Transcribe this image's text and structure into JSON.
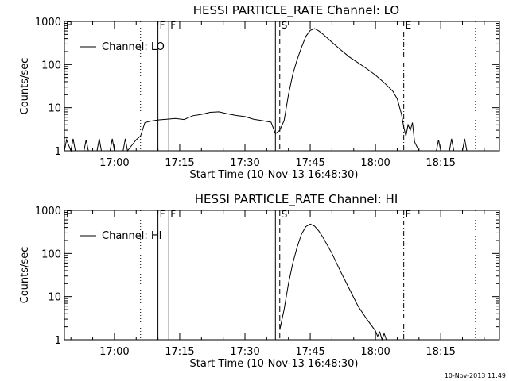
{
  "footer": {
    "timestamp": "10-Nov-2013 11:49"
  },
  "chart_data": [
    {
      "type": "line",
      "title": "HESSI PARTICLE_RATE Channel: LO",
      "xlabel": "Start Time (10-Nov-13 16:48:30)",
      "ylabel": "Counts/sec",
      "y_scale": "log",
      "ylim": [
        1,
        1000
      ],
      "xlim": [
        "16:48:30",
        "18:28:30"
      ],
      "x_ticks": [
        "17:00",
        "17:15",
        "17:30",
        "17:45",
        "18:00",
        "18:15"
      ],
      "y_ticks": [
        "1",
        "10",
        "100",
        "1000"
      ],
      "legend": {
        "placement": "top-left",
        "entries": [
          "Channel: LO"
        ]
      },
      "markers": [
        {
          "label": "F",
          "time": "17:10.0",
          "style": "solid"
        },
        {
          "label": "F",
          "time": "17:12.5",
          "style": "solid"
        },
        {
          "label": "S",
          "time": "17:38.0",
          "style": "dashed"
        },
        {
          "label": "E",
          "time": "18:06.5",
          "style": "dash-dot"
        }
      ],
      "guide_lines": [
        {
          "time": "17:06.0",
          "style": "dotted"
        },
        {
          "time": "17:37.0",
          "style": "solid"
        },
        {
          "time": "18:23.0",
          "style": "dotted"
        }
      ],
      "series": [
        {
          "name": "Channel: LO",
          "x": [
            "16:48:30",
            "16:49:00",
            "16:50:00",
            "16:50:30",
            "16:51:00",
            "16:53:00",
            "16:53:30",
            "16:54:00",
            "16:56:00",
            "16:56:30",
            "16:57:00",
            "16:59:00",
            "16:59:30",
            "17:00:00",
            "17:02:00",
            "17:02:30",
            "17:03:00",
            "17:05:00",
            "17:06:00",
            "17:07:00",
            "17:08:00",
            "17:10:00",
            "17:12:00",
            "17:14:00",
            "17:16:00",
            "17:18:00",
            "17:20:00",
            "17:22:00",
            "17:24:00",
            "17:26:00",
            "17:28:00",
            "17:30:00",
            "17:32:00",
            "17:34:00",
            "17:36:00",
            "17:37:00",
            "17:38:00",
            "17:39:00",
            "17:40:00",
            "17:41:00",
            "17:42:00",
            "17:43:00",
            "17:44:00",
            "17:45:00",
            "17:46:00",
            "17:47:00",
            "17:48:00",
            "17:50:00",
            "17:52:00",
            "17:54:00",
            "17:56:00",
            "17:58:00",
            "18:00:00",
            "18:02:00",
            "18:04:00",
            "18:05:00",
            "18:06:00",
            "18:06:30",
            "18:07:00",
            "18:07:30",
            "18:08:00",
            "18:08:30",
            "18:09:00",
            "18:10:00",
            "18:14:00",
            "18:14:30",
            "18:15:00",
            "18:17:00",
            "18:17:30",
            "18:18:00",
            "18:20:00",
            "18:20:30",
            "18:21:00",
            "18:23:00",
            "18:28:30"
          ],
          "y": [
            1,
            1.8,
            1,
            1.9,
            1,
            1,
            1.8,
            1,
            1,
            1.9,
            1,
            1,
            1.9,
            1,
            1,
            1.9,
            1,
            1.8,
            2.2,
            4.5,
            4.8,
            5.2,
            5.4,
            5.6,
            5.3,
            6.5,
            7.0,
            7.8,
            8.0,
            7.2,
            6.6,
            6.2,
            5.4,
            5.0,
            4.6,
            2.5,
            3.0,
            5.0,
            20,
            60,
            130,
            250,
            450,
            620,
            680,
            600,
            500,
            330,
            220,
            150,
            110,
            80,
            57,
            38,
            24,
            16,
            7,
            3.5,
            2.2,
            4.0,
            3.0,
            4.5,
            1.6,
            1,
            1,
            1.8,
            1,
            1,
            1.9,
            1,
            1,
            1.9,
            1,
            1,
            1
          ]
        }
      ]
    },
    {
      "type": "line",
      "title": "HESSI PARTICLE_RATE Channel: HI",
      "xlabel": "Start Time (10-Nov-13 16:48:30)",
      "ylabel": "Counts/sec",
      "y_scale": "log",
      "ylim": [
        1,
        1000
      ],
      "xlim": [
        "16:48:30",
        "18:28:30"
      ],
      "x_ticks": [
        "17:00",
        "17:15",
        "17:30",
        "17:45",
        "18:00",
        "18:15"
      ],
      "y_ticks": [
        "1",
        "10",
        "100",
        "1000"
      ],
      "legend": {
        "placement": "top-left",
        "entries": [
          "Channel: HI"
        ]
      },
      "markers": [
        {
          "label": "F",
          "time": "17:10.0",
          "style": "solid"
        },
        {
          "label": "F",
          "time": "17:12.5",
          "style": "solid"
        },
        {
          "label": "S",
          "time": "17:38.0",
          "style": "dashed"
        },
        {
          "label": "E",
          "time": "18:06.5",
          "style": "dash-dot"
        }
      ],
      "guide_lines": [
        {
          "time": "17:06.0",
          "style": "dotted"
        },
        {
          "time": "17:37.0",
          "style": "solid"
        },
        {
          "time": "18:23.0",
          "style": "dotted"
        }
      ],
      "series": [
        {
          "name": "Channel: HI",
          "x": [
            "17:38:00",
            "17:39:00",
            "17:40:00",
            "17:41:00",
            "17:42:00",
            "17:43:00",
            "17:44:00",
            "17:45:00",
            "17:46:00",
            "17:47:00",
            "17:48:00",
            "17:50:00",
            "17:52:00",
            "17:54:00",
            "17:56:00",
            "17:58:00",
            "18:00:00",
            "18:00:30",
            "18:01:00",
            "18:01:30",
            "18:02:00",
            "18:02:30"
          ],
          "y": [
            1.7,
            5,
            20,
            60,
            140,
            280,
            420,
            480,
            430,
            330,
            230,
            100,
            38,
            15,
            6,
            3,
            1.6,
            1.2,
            1.5,
            1,
            1.4,
            1
          ]
        }
      ]
    }
  ]
}
